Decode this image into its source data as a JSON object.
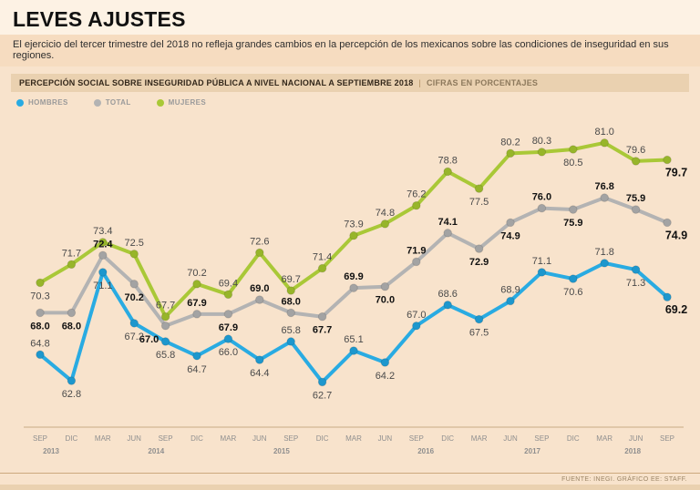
{
  "page": {
    "title": "LEVES AJUSTES",
    "subtitle": "El ejercicio del tercer trimestre del 2018 no refleja grandes cambios en la percepción de los mexicanos sobre las condiciones de inseguridad en sus regiones.",
    "footer": "FUENTE: INEGI. GRÁFICO EE: STAFF."
  },
  "chart_header": {
    "title": "PERCEPCIÓN SOCIAL SOBRE INSEGURIDAD PÚBLICA A NIVEL NACIONAL A SEPTIEMBRE 2018",
    "separator": "|",
    "note": "CIFRAS EN PORCENTAJES"
  },
  "legend": [
    {
      "id": "hombres",
      "label": "HOMBRES",
      "color": "#29abe2"
    },
    {
      "id": "total",
      "label": "TOTAL",
      "color": "#b3b3b3"
    },
    {
      "id": "mujeres",
      "label": "MUJERES",
      "color": "#a9c837"
    }
  ],
  "chart_data": {
    "type": "line",
    "title": "Percepción social sobre inseguridad pública a nivel nacional a septiembre 2018",
    "units": "porcentajes",
    "x": [
      "SEP",
      "DIC",
      "MAR",
      "JUN",
      "SEP",
      "DIC",
      "MAR",
      "JUN",
      "SEP",
      "DIC",
      "MAR",
      "JUN",
      "SEP",
      "DIC",
      "MAR",
      "JUN",
      "SEP",
      "DIC",
      "MAR",
      "JUN",
      "SEP"
    ],
    "years": [
      {
        "label": "2013",
        "index": 0.35
      },
      {
        "label": "2014",
        "index": 3.7
      },
      {
        "label": "2015",
        "index": 7.7
      },
      {
        "label": "2016",
        "index": 12.3
      },
      {
        "label": "2017",
        "index": 15.7
      },
      {
        "label": "2018",
        "index": 18.9
      }
    ],
    "ylim": [
      61.2,
      82.8
    ],
    "grid": false,
    "legend_position": "top-left",
    "series": [
      {
        "id": "total",
        "name": "TOTAL",
        "color": "#b3b3b3",
        "dot_color": "#a3a3a3",
        "bold_labels": true,
        "values": [
          68.0,
          68.0,
          72.4,
          70.2,
          67.0,
          67.9,
          67.9,
          69.0,
          68.0,
          67.7,
          69.9,
          70.0,
          71.9,
          74.1,
          72.9,
          74.9,
          76.0,
          75.9,
          76.8,
          75.9,
          74.9
        ],
        "label_pos": [
          "b",
          "b",
          "a",
          "b",
          "b",
          "a",
          "b",
          "a",
          "a",
          "b",
          "a",
          "b",
          "a",
          "a",
          "b",
          "b",
          "a",
          "b",
          "a",
          "a",
          "b"
        ],
        "label_dx": {
          "4": -18,
          "20": 10
        }
      },
      {
        "id": "mujeres",
        "name": "MUJERES",
        "color": "#a9c837",
        "dot_color": "#97b52a",
        "bold_labels": false,
        "values": [
          70.3,
          71.7,
          73.4,
          72.5,
          67.7,
          70.2,
          69.4,
          72.6,
          69.7,
          71.4,
          73.9,
          74.8,
          76.2,
          78.8,
          77.5,
          80.2,
          80.3,
          80.5,
          81.0,
          79.6,
          79.7
        ],
        "label_pos": [
          "b",
          "a",
          "a",
          "a",
          "a",
          "a",
          "a",
          "a",
          "a",
          "a",
          "a",
          "a",
          "a",
          "a",
          "b",
          "a",
          "a",
          "b",
          "a",
          "a",
          "b"
        ],
        "label_dx": {
          "20": 10
        }
      },
      {
        "id": "hombres",
        "name": "HOMBRES",
        "color": "#29abe2",
        "dot_color": "#1d97cd",
        "bold_labels": false,
        "values": [
          64.8,
          62.8,
          71.1,
          67.2,
          65.8,
          64.7,
          66.0,
          64.4,
          65.8,
          62.7,
          65.1,
          64.2,
          67.0,
          68.6,
          67.5,
          68.9,
          71.1,
          70.6,
          71.8,
          71.3,
          69.2
        ],
        "label_pos": [
          "a",
          "b",
          "b",
          "b",
          "b",
          "b",
          "b",
          "b",
          "a",
          "b",
          "a",
          "b",
          "a",
          "a",
          "b",
          "a",
          "a",
          "b",
          "a",
          "b",
          "b"
        ],
        "label_dx": {
          "20": 10
        }
      }
    ]
  }
}
